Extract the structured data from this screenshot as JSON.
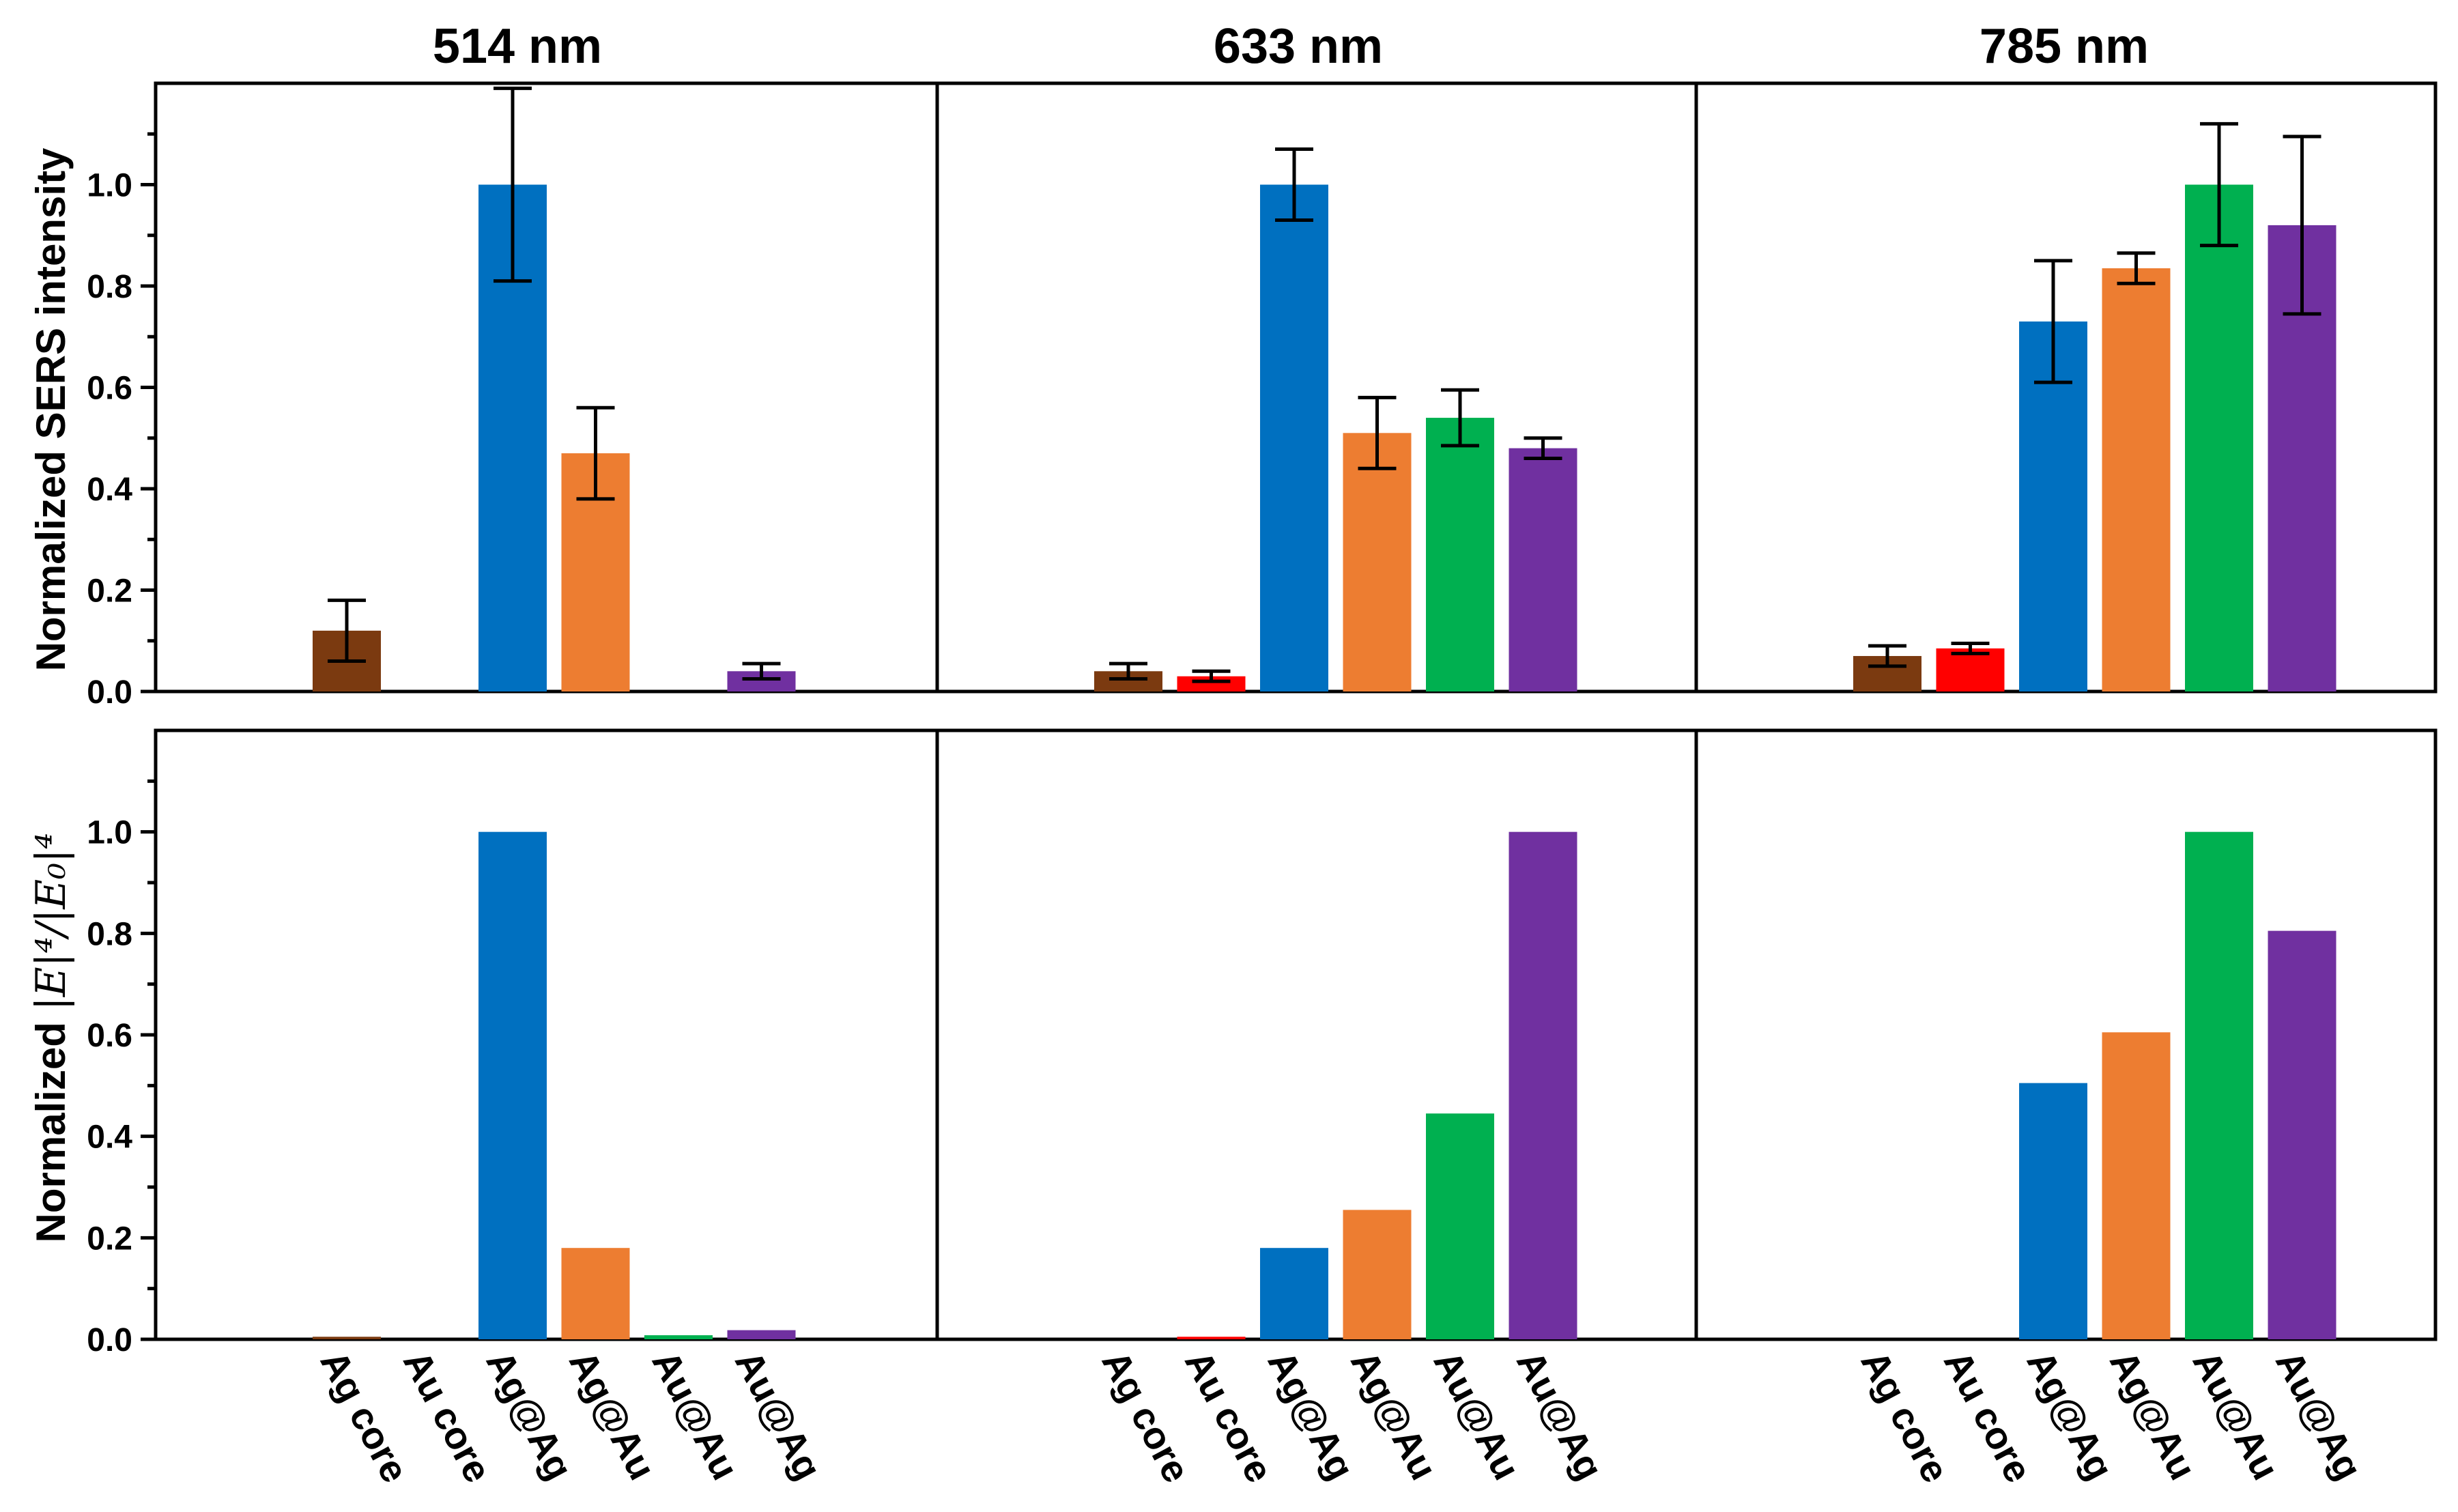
{
  "colors": {
    "Ag core": "#7B3A10",
    "Au core": "#FF0000",
    "Ag@Ag": "#0070C0",
    "Ag@Au": "#ED7D31",
    "Au@Au": "#00B050",
    "Au@Ag": "#7030A0"
  },
  "chart_data": {
    "type": "bar",
    "categories": [
      "Ag core",
      "Au core",
      "Ag@Ag",
      "Ag@Au",
      "Au@Au",
      "Au@Ag"
    ],
    "columns": [
      {
        "title": "514 nm"
      },
      {
        "title": "633 nm"
      },
      {
        "title": "785 nm"
      }
    ],
    "rows": [
      {
        "ylabel": "Normalized SERS intensity",
        "ylim": [
          0,
          1.2
        ],
        "yticks": [
          "0.0",
          "0.2",
          "0.4",
          "0.6",
          "0.8",
          "1.0"
        ],
        "panels": [
          {
            "values": [
              0.12,
              null,
              1.0,
              0.47,
              null,
              0.04
            ],
            "errors": [
              0.06,
              null,
              0.19,
              0.09,
              null,
              0.015
            ]
          },
          {
            "values": [
              0.04,
              0.03,
              1.0,
              0.51,
              0.54,
              0.48
            ],
            "errors": [
              0.015,
              0.01,
              0.07,
              0.07,
              0.055,
              0.02
            ]
          },
          {
            "values": [
              0.07,
              0.085,
              0.73,
              0.835,
              1.0,
              0.92
            ],
            "errors": [
              0.02,
              0.01,
              0.12,
              0.03,
              0.12,
              0.175
            ]
          }
        ]
      },
      {
        "ylabel_prefix": "Normalized ",
        "ylabel_math": "|E|⁴/|E₀|⁴",
        "ylim": [
          0,
          1.2
        ],
        "yticks": [
          "0.0",
          "0.2",
          "0.4",
          "0.6",
          "0.8",
          "1.0"
        ],
        "panels": [
          {
            "values": [
              0.005,
              null,
              1.0,
              0.18,
              0.008,
              0.018
            ]
          },
          {
            "values": [
              null,
              0.005,
              0.18,
              0.255,
              0.445,
              1.0
            ]
          },
          {
            "values": [
              null,
              null,
              0.505,
              0.605,
              1.0,
              0.805
            ]
          }
        ]
      }
    ]
  }
}
